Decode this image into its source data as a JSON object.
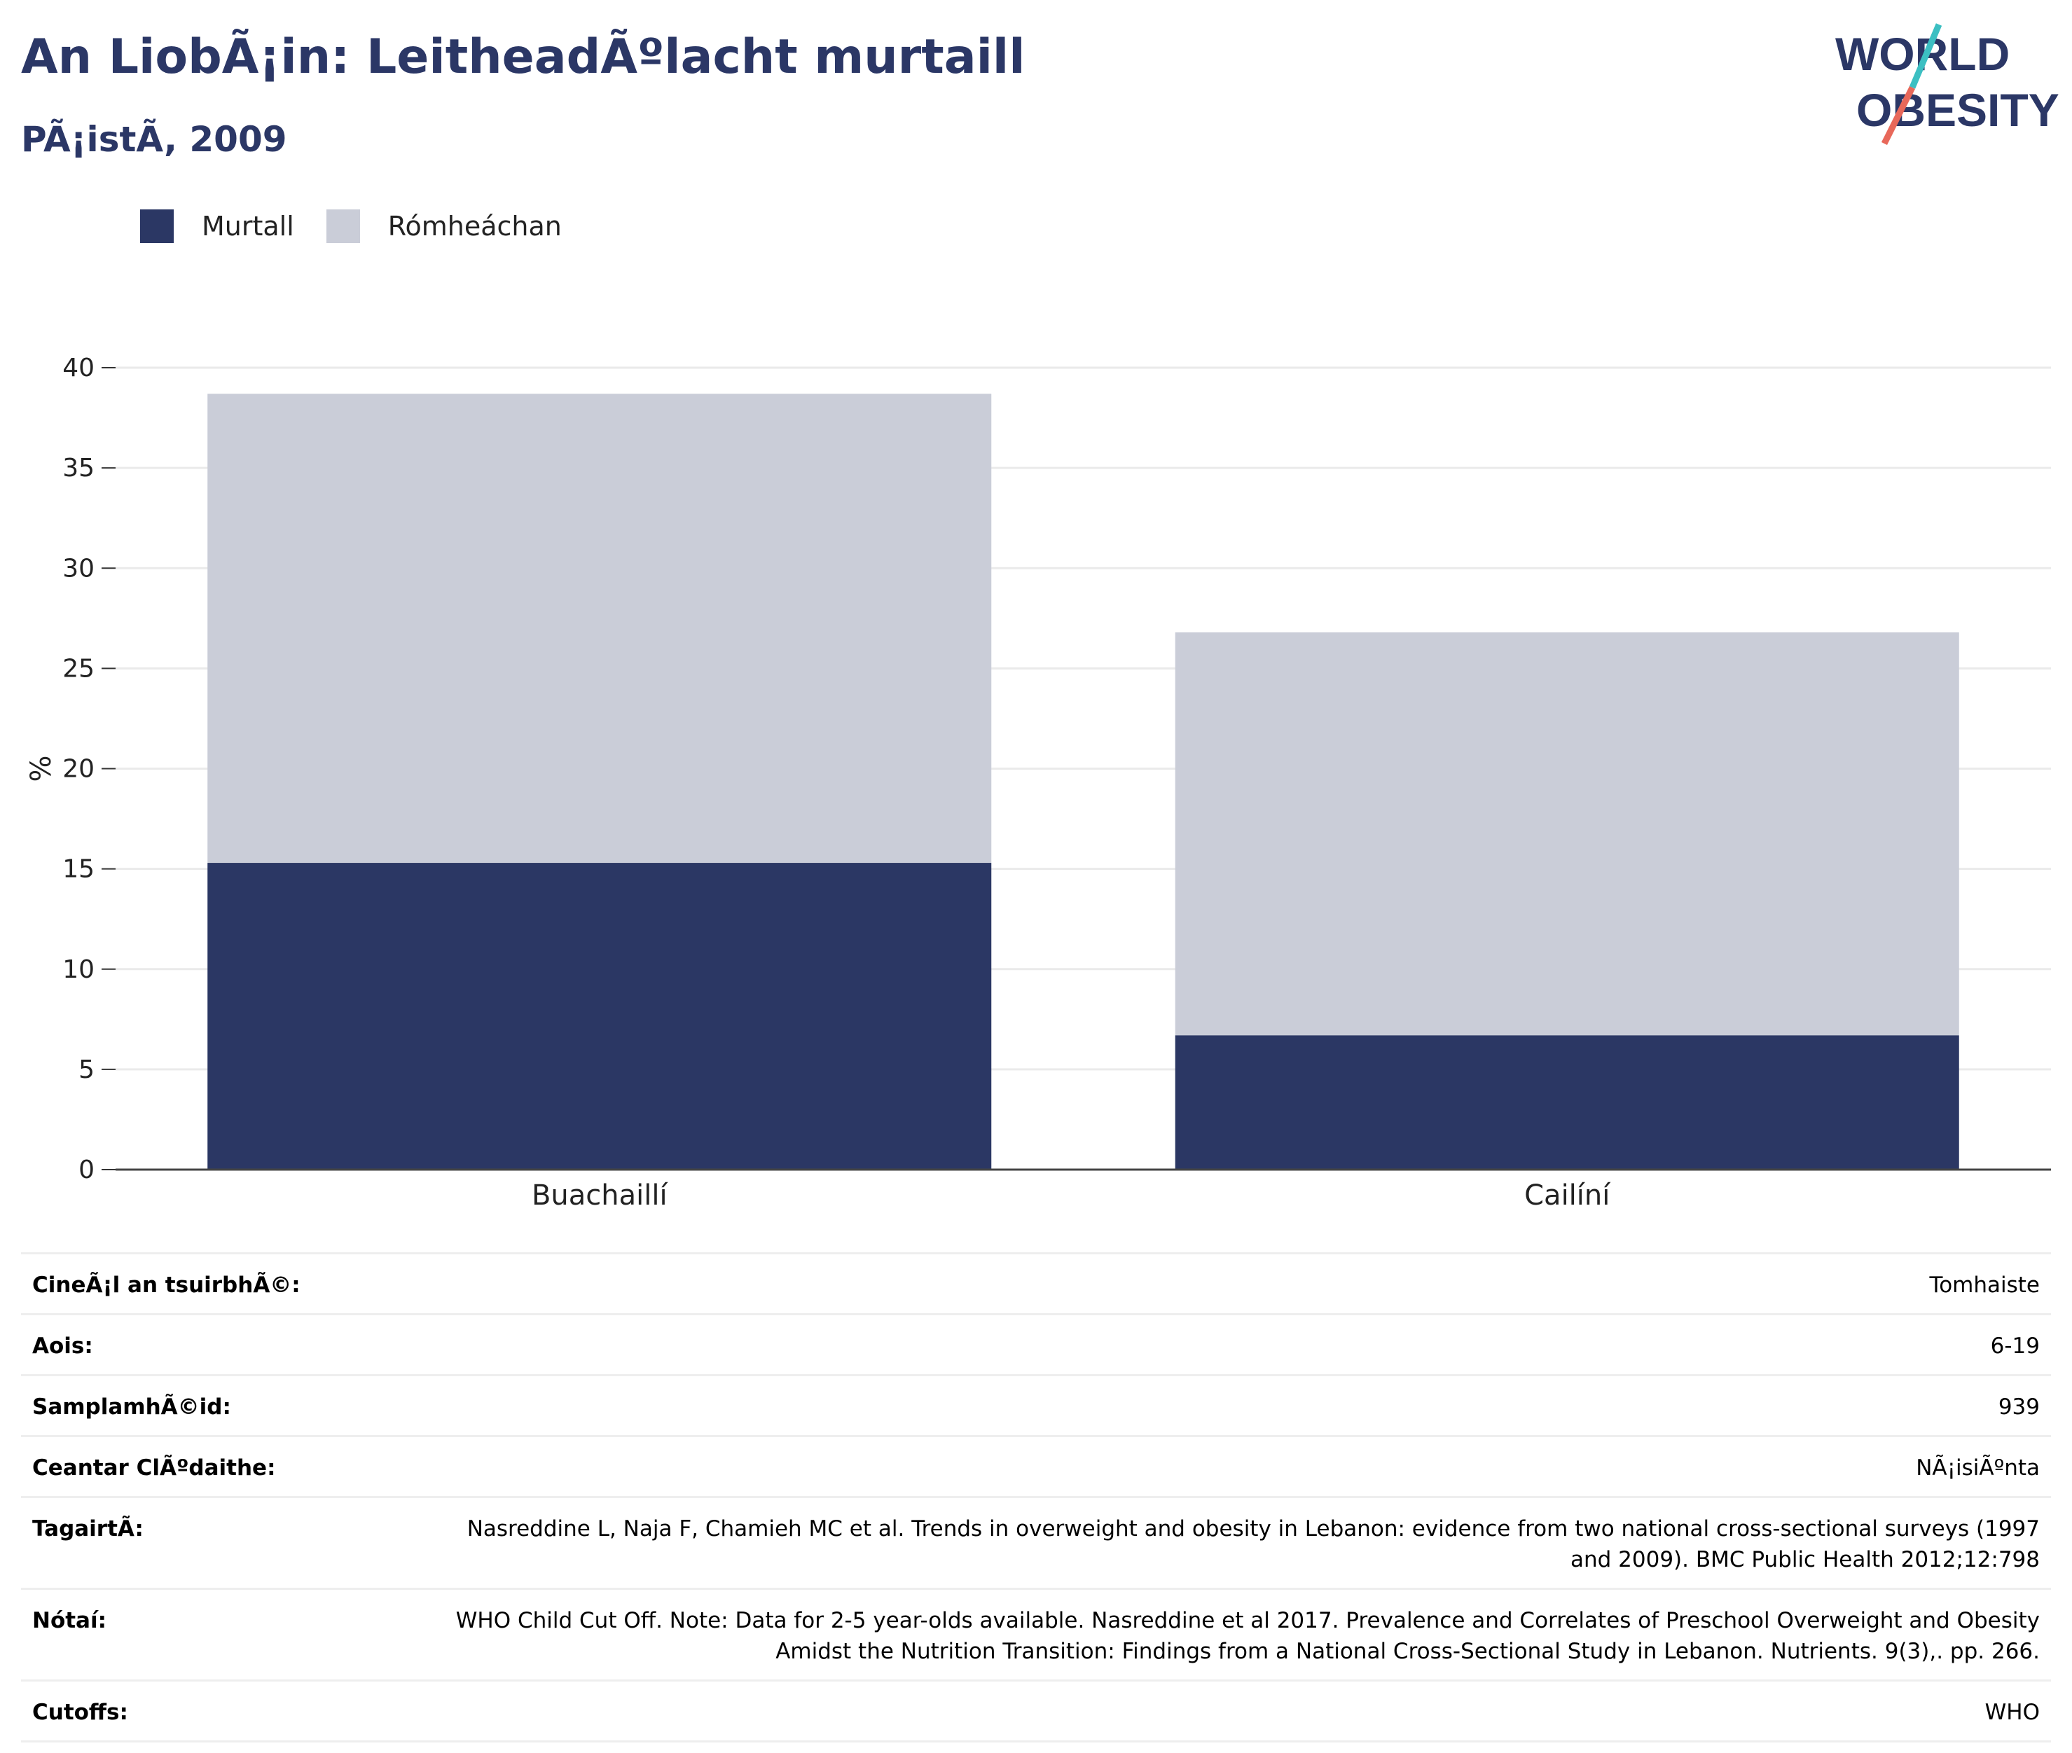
{
  "header": {
    "title": "An LiobÃ¡in: LeitheadÃºlacht murtaill",
    "subtitle": "PÃ¡istÃ, 2009",
    "logo_text_line1": "WORLD",
    "logo_text_line2": "OBESITY"
  },
  "colors": {
    "obese": "#2b3764",
    "overweight": "#cacdd8",
    "title": "#2b3766",
    "logo_teal": "#3cbfc2",
    "logo_coral": "#e8685a"
  },
  "chart_data": {
    "type": "bar",
    "stacked": true,
    "categories": [
      "Buachaillí",
      "Cailíní"
    ],
    "series": [
      {
        "name": "Murtall",
        "values": [
          15.3,
          6.7
        ]
      },
      {
        "name": "Rómheáchan",
        "values": [
          23.4,
          20.1
        ]
      }
    ],
    "ylabel": "%",
    "ylim": [
      0,
      40
    ],
    "yticks": [
      0,
      5,
      10,
      15,
      20,
      25,
      30,
      35,
      40
    ],
    "grid": true,
    "legend": "top-left"
  },
  "meta": [
    {
      "label": "CineÃ¡l an tsuirbhÃ©:",
      "value": "Tomhaiste"
    },
    {
      "label": "Aois:",
      "value": "6-19"
    },
    {
      "label": "SamplamhÃ©id:",
      "value": "939"
    },
    {
      "label": "Ceantar ClÃºdaithe:",
      "value": "NÃ¡isiÃºnta"
    },
    {
      "label": "TagairtÃ:",
      "value": "Nasreddine L, Naja F, Chamieh MC et al. Trends in overweight and obesity in Lebanon: evidence from two national cross-sectional surveys (1997 and 2009). BMC Public Health 2012;12:798"
    },
    {
      "label": "Nótaí:",
      "value": "WHO Child Cut Off. Note: Data for 2-5 year-olds available. Nasreddine et al 2017. Prevalence and Correlates of Preschool Overweight and Obesity Amidst the Nutrition Transition: Findings from a National Cross-Sectional Study in Lebanon. Nutrients. 9(3),. pp. 266."
    },
    {
      "label": "Cutoffs:",
      "value": "WHO"
    }
  ]
}
